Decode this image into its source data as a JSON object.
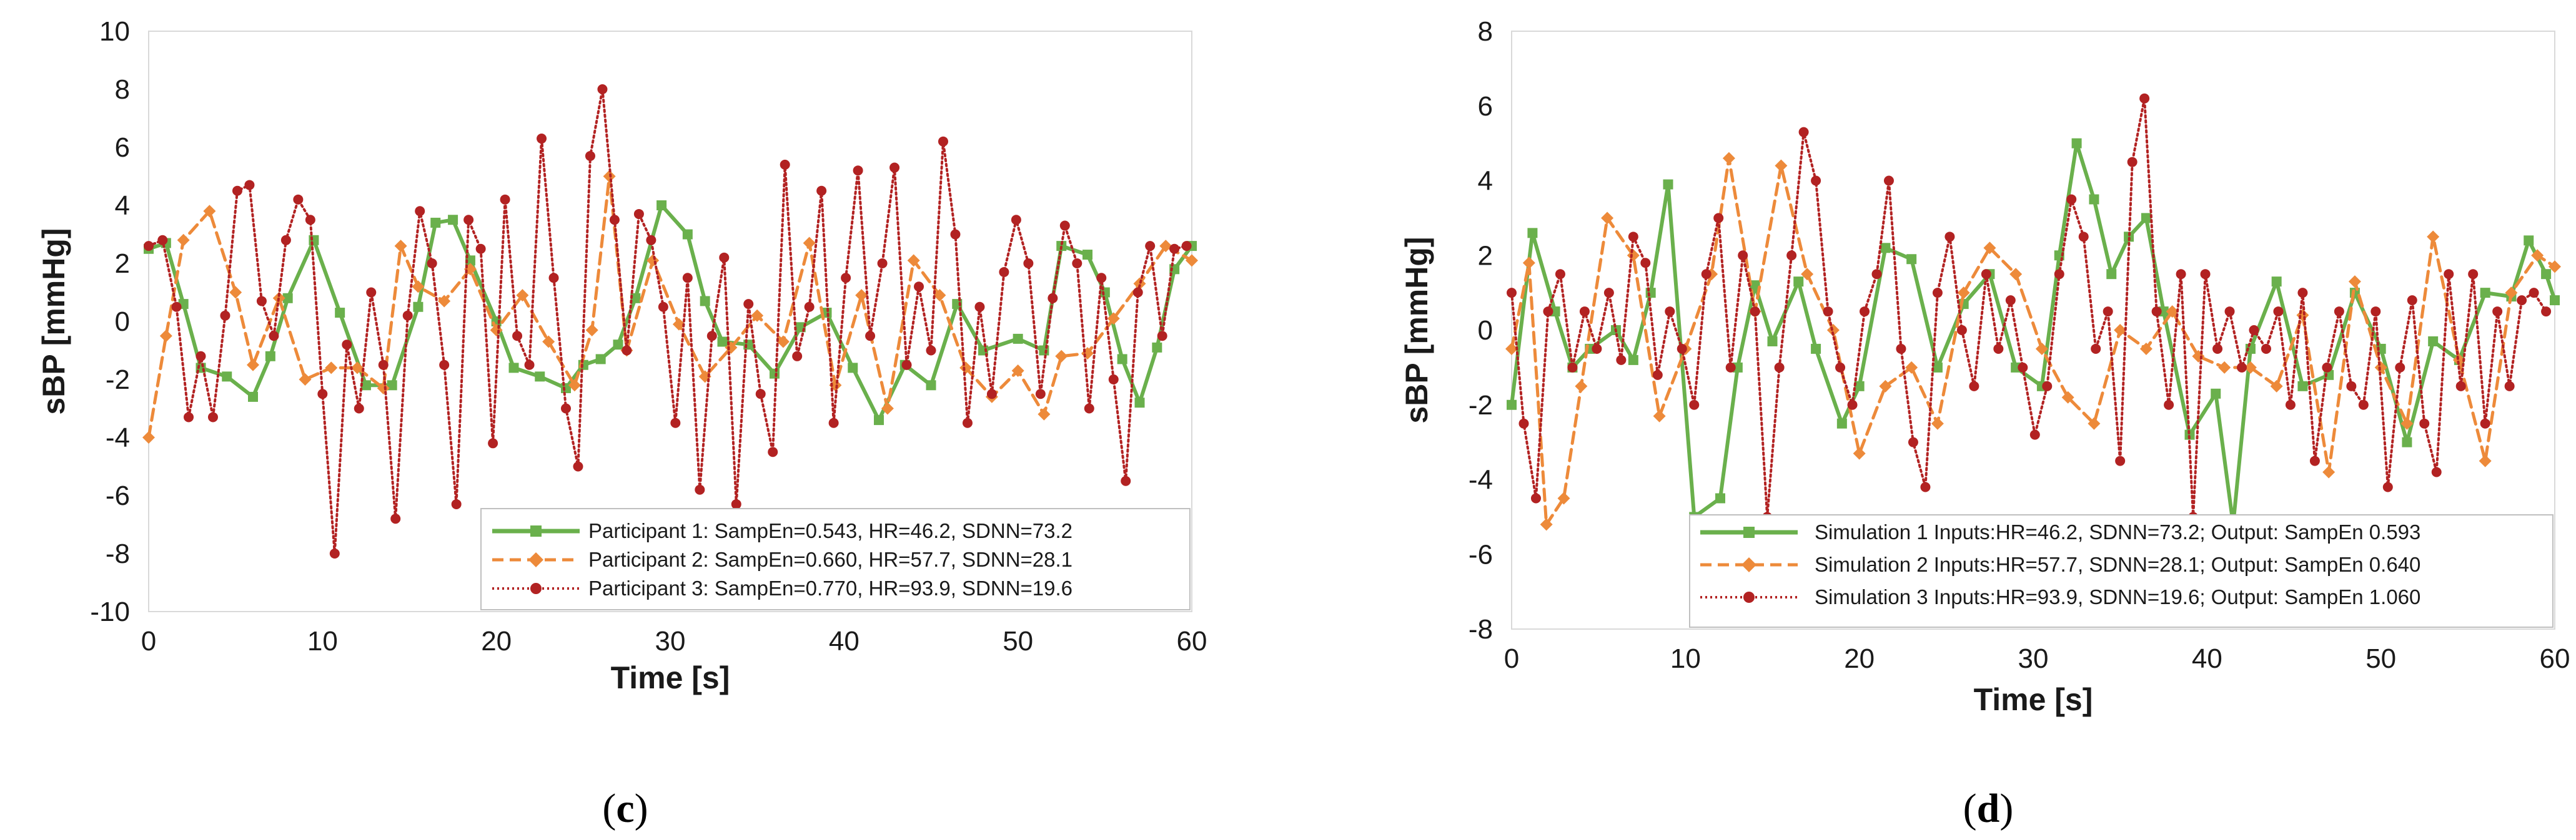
{
  "chart_data": [
    {
      "type": "line",
      "panel_label": {
        "open": "(",
        "letter": "c",
        "close": ")"
      },
      "xlabel": "Time [s]",
      "ylabel": "sBP [mmHg]",
      "xlim": [
        0,
        60
      ],
      "ylim": [
        -10,
        10
      ],
      "xticks": [
        0,
        10,
        20,
        30,
        40,
        50,
        60
      ],
      "yticks": [
        -10,
        -8,
        -6,
        -4,
        -2,
        0,
        2,
        4,
        6,
        8,
        10
      ],
      "grid": "none",
      "legend_position": "bottom-right",
      "series": [
        {
          "name": "Participant 1: SampEn=0.543, HR=46.2, SDNN=73.2",
          "color": "#6ab04c",
          "dash": "solid",
          "marker": "square",
          "x": [
            0,
            1,
            2,
            3,
            4.5,
            6,
            7,
            8,
            9.5,
            11,
            12.5,
            14,
            15.5,
            16.5,
            17.5,
            18.5,
            20,
            21,
            22.5,
            24,
            25,
            26,
            27,
            28,
            29.5,
            31,
            32,
            33,
            34.5,
            36,
            37.5,
            39,
            40.5,
            42,
            43.5,
            45,
            46.5,
            48,
            50,
            51.5,
            52.5,
            54,
            55,
            56,
            57,
            58,
            59,
            60
          ],
          "values": [
            2.5,
            2.7,
            0.6,
            -1.6,
            -1.9,
            -2.6,
            -1.2,
            0.8,
            2.8,
            0.3,
            -2.2,
            -2.2,
            0.5,
            3.4,
            3.5,
            2.1,
            0,
            -1.6,
            -1.9,
            -2.3,
            -1.5,
            -1.3,
            -0.8,
            0.8,
            4.0,
            3.0,
            0.7,
            -0.7,
            -0.8,
            -1.8,
            -0.2,
            0.3,
            -1.6,
            -3.4,
            -1.5,
            -2.2,
            0.6,
            -1.0,
            -0.6,
            -1.0,
            2.6,
            2.3,
            1.0,
            -1.3,
            -2.8,
            -0.9,
            1.8,
            2.6
          ]
        },
        {
          "name": "Participant 2: SampEn=0.660, HR=57.7, SDNN=28.1",
          "color": "#ed8a3a",
          "dash": "dashed",
          "marker": "diamond",
          "x": [
            0,
            1,
            2,
            3.5,
            5,
            6,
            7.5,
            9,
            10.5,
            12,
            13.5,
            14.5,
            15.5,
            17,
            18.5,
            20,
            21.5,
            23,
            24.5,
            25.5,
            26.5,
            27.5,
            29,
            30.5,
            32,
            33.5,
            35,
            36.5,
            38,
            39.5,
            41,
            42.5,
            44,
            45.5,
            47,
            48.5,
            50,
            51.5,
            52.5,
            54,
            55.5,
            57,
            58.5,
            60
          ],
          "values": [
            -4.0,
            -0.5,
            2.8,
            3.8,
            1.0,
            -1.5,
            0.8,
            -2.0,
            -1.6,
            -1.6,
            -2.3,
            2.6,
            1.2,
            0.7,
            1.8,
            -0.3,
            0.9,
            -0.7,
            -2.2,
            -0.3,
            5.0,
            -1.0,
            2.1,
            -0.1,
            -1.9,
            -0.9,
            0.2,
            -0.7,
            2.7,
            -2.2,
            0.9,
            -3.0,
            2.1,
            0.9,
            -1.6,
            -2.6,
            -1.7,
            -3.2,
            -1.2,
            -1.1,
            0.1,
            1.3,
            2.6,
            2.1
          ]
        },
        {
          "name": "Participant 3: SampEn=0.770, HR=93.9, SDNN=19.6",
          "color": "#b22222",
          "dash": "dotted",
          "marker": "circle",
          "x": [
            0,
            0.8,
            1.6,
            2.3,
            3.0,
            3.7,
            4.4,
            5.1,
            5.8,
            6.5,
            7.2,
            7.9,
            8.6,
            9.3,
            10.0,
            10.7,
            11.4,
            12.1,
            12.8,
            13.5,
            14.2,
            14.9,
            15.6,
            16.3,
            17.0,
            17.7,
            18.4,
            19.1,
            19.8,
            20.5,
            21.2,
            21.9,
            22.6,
            23.3,
            24.0,
            24.7,
            25.4,
            26.1,
            26.8,
            27.5,
            28.2,
            28.9,
            29.6,
            30.3,
            31.0,
            31.7,
            32.4,
            33.1,
            33.8,
            34.5,
            35.2,
            35.9,
            36.6,
            37.3,
            38.0,
            38.7,
            39.4,
            40.1,
            40.8,
            41.5,
            42.2,
            42.9,
            43.6,
            44.3,
            45.0,
            45.7,
            46.4,
            47.1,
            47.8,
            48.5,
            49.2,
            49.9,
            50.6,
            51.3,
            52.0,
            52.7,
            53.4,
            54.1,
            54.8,
            55.5,
            56.2,
            56.9,
            57.6,
            58.3,
            59.0,
            59.7
          ],
          "values": [
            2.6,
            2.8,
            0.5,
            -3.3,
            -1.2,
            -3.3,
            0.2,
            4.5,
            4.7,
            0.7,
            -0.5,
            2.8,
            4.2,
            3.5,
            -2.5,
            -8.0,
            -0.8,
            -3.0,
            1.0,
            -1.5,
            -6.8,
            0.2,
            3.8,
            2.0,
            -1.5,
            -6.3,
            3.5,
            2.5,
            -4.2,
            4.2,
            -0.5,
            -1.5,
            6.3,
            1.5,
            -3.0,
            -5.0,
            5.7,
            8.0,
            3.5,
            -1.0,
            3.7,
            2.8,
            0.5,
            -3.5,
            1.5,
            -5.8,
            -0.5,
            2.2,
            -6.3,
            0.6,
            -2.5,
            -4.5,
            5.4,
            -1.2,
            0.5,
            4.5,
            -3.5,
            1.5,
            5.2,
            -0.5,
            2.0,
            5.3,
            -1.5,
            1.2,
            -1.0,
            6.2,
            3.0,
            -3.5,
            0.5,
            -2.5,
            1.7,
            3.5,
            2.0,
            -2.5,
            0.8,
            3.3,
            2.0,
            -3.0,
            1.5,
            -2.0,
            -5.5,
            1.0,
            2.6,
            -0.5,
            2.5,
            2.6
          ]
        }
      ]
    },
    {
      "type": "line",
      "panel_label": {
        "open": "(",
        "letter": "d",
        "close": ")"
      },
      "xlabel": "Time [s]",
      "ylabel": "sBP [mmHg]",
      "xlim": [
        0,
        60
      ],
      "ylim": [
        -8,
        8
      ],
      "xticks": [
        0,
        10,
        20,
        30,
        40,
        50,
        60
      ],
      "yticks": [
        -8,
        -6,
        -4,
        -2,
        0,
        2,
        4,
        6,
        8
      ],
      "grid": "none",
      "legend_position": "bottom-right",
      "series": [
        {
          "name": "Simulation 1 Inputs:HR=46.2, SDNN=73.2; Output: SampEn 0.593",
          "color": "#6ab04c",
          "dash": "solid",
          "marker": "square",
          "x": [
            0,
            1.2,
            2.5,
            3.5,
            4.5,
            6,
            7,
            8,
            9,
            10.5,
            12,
            13,
            14,
            15,
            16.5,
            17.5,
            19,
            20,
            21.5,
            23,
            24.5,
            26,
            27.5,
            29,
            30.5,
            31.5,
            32.5,
            33.5,
            34.5,
            35.5,
            36.5,
            37.5,
            39,
            40.5,
            41.5,
            42.5,
            44,
            45.5,
            47,
            48.5,
            50,
            51.5,
            53,
            54.5,
            56,
            57.5,
            58.5,
            59.5,
            60
          ],
          "values": [
            -2.0,
            2.6,
            0.5,
            -1.0,
            -0.5,
            0.0,
            -0.8,
            1.0,
            3.9,
            -5.0,
            -4.5,
            -1.0,
            1.2,
            -0.3,
            1.3,
            -0.5,
            -2.5,
            -1.5,
            2.2,
            1.9,
            -1.0,
            0.7,
            1.5,
            -1.0,
            -1.5,
            2.0,
            5.0,
            3.5,
            1.5,
            2.5,
            3.0,
            0.5,
            -2.8,
            -1.7,
            -5.2,
            -0.5,
            1.3,
            -1.5,
            -1.2,
            1.0,
            -0.5,
            -3.0,
            -0.3,
            -0.8,
            1.0,
            0.9,
            2.4,
            1.5,
            0.8
          ]
        },
        {
          "name": "Simulation 2 Inputs:HR=57.7, SDNN=28.1; Output: SampEn 0.640",
          "color": "#ed8a3a",
          "dash": "dashed",
          "marker": "diamond",
          "x": [
            0,
            1,
            2,
            3,
            4,
            5.5,
            7,
            8.5,
            10,
            11.5,
            12.5,
            14,
            15.5,
            17,
            18.5,
            20,
            21.5,
            23,
            24.5,
            26,
            27.5,
            29,
            30.5,
            32,
            33.5,
            35,
            36.5,
            38,
            39.5,
            41,
            42.5,
            44,
            45.5,
            47,
            48.5,
            50,
            51.5,
            53,
            54.5,
            56,
            57.5,
            59,
            60
          ],
          "values": [
            -0.5,
            1.8,
            -5.2,
            -4.5,
            -1.5,
            3.0,
            2.0,
            -2.3,
            -0.5,
            1.5,
            4.6,
            0.5,
            4.4,
            1.5,
            0.0,
            -3.3,
            -1.5,
            -1.0,
            -2.5,
            1.0,
            2.2,
            1.5,
            -0.5,
            -1.8,
            -2.5,
            0.0,
            -0.5,
            0.5,
            -0.7,
            -1.0,
            -1.0,
            -1.5,
            0.4,
            -3.8,
            1.3,
            -1.0,
            -2.5,
            2.5,
            -0.8,
            -3.5,
            1.0,
            2.0,
            1.7
          ]
        },
        {
          "name": "Simulation 3 Inputs:HR=93.9, SDNN=19.6; Output: SampEn 1.060",
          "color": "#b22222",
          "dash": "dotted",
          "marker": "circle",
          "x": [
            0,
            0.7,
            1.4,
            2.1,
            2.8,
            3.5,
            4.2,
            4.9,
            5.6,
            6.3,
            7.0,
            7.7,
            8.4,
            9.1,
            9.8,
            10.5,
            11.2,
            11.9,
            12.6,
            13.3,
            14.0,
            14.7,
            15.4,
            16.1,
            16.8,
            17.5,
            18.2,
            18.9,
            19.6,
            20.3,
            21.0,
            21.7,
            22.4,
            23.1,
            23.8,
            24.5,
            25.2,
            25.9,
            26.6,
            27.3,
            28.0,
            28.7,
            29.4,
            30.1,
            30.8,
            31.5,
            32.2,
            32.9,
            33.6,
            34.3,
            35.0,
            35.7,
            36.4,
            37.1,
            37.8,
            38.5,
            39.2,
            39.9,
            40.6,
            41.3,
            42.0,
            42.7,
            43.4,
            44.1,
            44.8,
            45.5,
            46.2,
            46.9,
            47.6,
            48.3,
            49.0,
            49.7,
            50.4,
            51.1,
            51.8,
            52.5,
            53.2,
            53.9,
            54.6,
            55.3,
            56.0,
            56.7,
            57.4,
            58.1,
            58.8,
            59.5
          ],
          "values": [
            1.0,
            -2.5,
            -4.5,
            0.5,
            1.5,
            -1.0,
            0.5,
            -0.5,
            1.0,
            -0.8,
            2.5,
            1.8,
            -1.2,
            0.5,
            -0.5,
            -2.0,
            1.5,
            3.0,
            -1.0,
            2.0,
            0.5,
            -5.0,
            -1.0,
            2.0,
            5.3,
            4.0,
            0.5,
            -1.0,
            -2.0,
            0.5,
            1.5,
            4.0,
            -0.5,
            -3.0,
            -4.2,
            1.0,
            2.5,
            0.0,
            -1.5,
            1.5,
            -0.5,
            0.8,
            -1.0,
            -2.8,
            -1.5,
            1.5,
            3.5,
            2.5,
            -0.5,
            0.5,
            -3.5,
            4.5,
            6.2,
            0.5,
            -2.0,
            1.5,
            -5.0,
            1.5,
            -0.5,
            0.5,
            -1.0,
            0.0,
            -0.5,
            0.5,
            -2.0,
            1.0,
            -3.5,
            -1.0,
            0.5,
            -1.5,
            -2.0,
            0.5,
            -4.2,
            -1.0,
            0.8,
            -2.5,
            -3.8,
            1.5,
            -1.5,
            1.5,
            -2.5,
            0.5,
            -1.5,
            0.8,
            1.0,
            0.5
          ]
        }
      ]
    }
  ]
}
